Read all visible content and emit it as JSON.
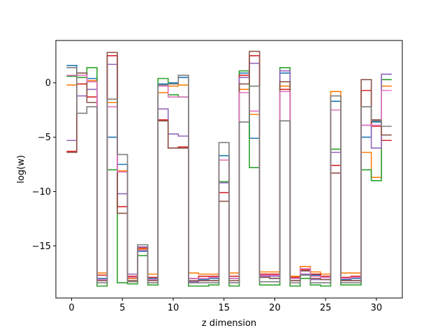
{
  "chart_data": {
    "type": "line",
    "drawstyle": "steps-mid",
    "title": "",
    "xlabel": "z dimension",
    "ylabel": "log(w)",
    "xlim": [
      -1.55,
      32.55
    ],
    "ylim": [
      -19.8,
      3.9
    ],
    "xticks": [
      0,
      5,
      10,
      15,
      20,
      25,
      30
    ],
    "yticks": [
      -15,
      -10,
      -5,
      0
    ],
    "grid": false,
    "x": [
      0,
      1,
      2,
      3,
      4,
      5,
      6,
      7,
      8,
      9,
      10,
      11,
      12,
      13,
      14,
      15,
      16,
      17,
      18,
      19,
      20,
      21,
      22,
      23,
      24,
      25,
      26,
      27,
      28,
      29,
      30,
      31
    ],
    "series": [
      {
        "color": "#1f77b4",
        "values": [
          1.6,
          0.9,
          0.4,
          -18.0,
          -5.0,
          -7.5,
          -18.0,
          -15.5,
          -18.0,
          -0.1,
          0.0,
          0.5,
          -18.0,
          -18.1,
          -18.0,
          -6.7,
          -18.0,
          0.9,
          -5.1,
          -17.8,
          -18.0,
          0.9,
          -18.0,
          -17.3,
          -17.7,
          -17.8,
          -1.7,
          -18.1,
          -18.0,
          -5.0,
          -3.6,
          0.8
        ]
      },
      {
        "color": "#ff7f0e",
        "values": [
          -0.2,
          -0.1,
          0.2,
          -17.5,
          -1.8,
          -8.1,
          -18.0,
          -15.3,
          -17.6,
          -0.9,
          -0.3,
          -0.2,
          -17.5,
          -17.6,
          -17.6,
          -7.1,
          -17.5,
          -0.6,
          -2.9,
          -17.4,
          -17.4,
          -0.3,
          -17.8,
          -16.9,
          -17.4,
          -17.6,
          -0.8,
          -17.5,
          -17.5,
          -6.4,
          -8.7,
          -0.3
        ]
      },
      {
        "color": "#2ca02c",
        "values": [
          0.6,
          0.5,
          1.4,
          -18.7,
          -8.0,
          -18.4,
          -18.5,
          -15.9,
          -18.6,
          0.4,
          -1.1,
          -1.3,
          -18.7,
          -18.7,
          -18.6,
          -9.1,
          -18.7,
          1.1,
          -7.8,
          -18.6,
          -18.6,
          1.4,
          -18.7,
          -18.0,
          -18.6,
          -18.7,
          -6.1,
          -18.6,
          -18.6,
          -8.0,
          -9.0,
          0.3
        ]
      },
      {
        "color": "#d62728",
        "values": [
          -6.3,
          -0.1,
          -1.3,
          -17.7,
          2.5,
          -11.4,
          -17.8,
          -15.2,
          -17.9,
          -3.4,
          -6.0,
          -5.9,
          -18.0,
          -17.8,
          -17.8,
          -10.1,
          -17.8,
          0.7,
          2.5,
          -17.6,
          -17.6,
          -0.6,
          -17.9,
          -17.2,
          -17.6,
          -17.8,
          -7.6,
          -17.9,
          -17.8,
          -0.7,
          -4.0,
          -5.3
        ]
      },
      {
        "color": "#9467bd",
        "values": [
          -5.3,
          -1.2,
          -0.6,
          -18.2,
          1.7,
          -10.2,
          -17.6,
          -15.1,
          -18.2,
          -2.4,
          -4.7,
          -4.9,
          -18.3,
          -18.2,
          -18.2,
          -9.2,
          -18.4,
          0.5,
          1.8,
          -17.8,
          -17.8,
          1.1,
          -18.2,
          -17.6,
          -18.1,
          -18.1,
          -6.4,
          -18.2,
          -18.2,
          -3.9,
          -6.0,
          0.8
        ]
      },
      {
        "color": "#8c564b",
        "values": [
          -6.4,
          0.9,
          -1.8,
          -18.2,
          2.8,
          -12.0,
          -18.2,
          -15.4,
          -18.2,
          -3.5,
          -6.0,
          -6.0,
          -18.2,
          -18.2,
          -18.2,
          -10.9,
          -18.2,
          -0.1,
          2.9,
          -17.9,
          -18.0,
          0.1,
          -18.2,
          -17.3,
          -18.0,
          -18.1,
          -8.3,
          -18.2,
          -18.2,
          0.3,
          -3.4,
          -4.8
        ]
      },
      {
        "color": "#e377c2",
        "values": [
          0.7,
          0.7,
          0.1,
          -18.1,
          -2.2,
          -8.2,
          -17.9,
          -15.4,
          -18.1,
          -0.3,
          -1.3,
          -1.3,
          -18.0,
          -18.0,
          -17.9,
          -7.1,
          -18.0,
          -0.9,
          -2.6,
          -17.7,
          -17.7,
          -0.8,
          -18.0,
          -17.1,
          -17.8,
          -17.9,
          -2.5,
          -18.0,
          -17.9,
          -3.9,
          -3.9,
          -0.7
        ]
      },
      {
        "color": "#7f7f7f",
        "values": [
          1.4,
          -2.8,
          -2.2,
          -18.4,
          -1.5,
          -6.6,
          -18.3,
          -14.9,
          -18.4,
          -0.2,
          -0.1,
          0.7,
          -18.4,
          -18.4,
          -18.4,
          -5.5,
          -18.4,
          -3.6,
          -0.3,
          -18.3,
          -18.3,
          -3.5,
          -18.4,
          -17.7,
          -18.4,
          -18.4,
          -1.2,
          -18.4,
          -18.4,
          -2.2,
          -3.5,
          -4.0
        ]
      }
    ]
  }
}
